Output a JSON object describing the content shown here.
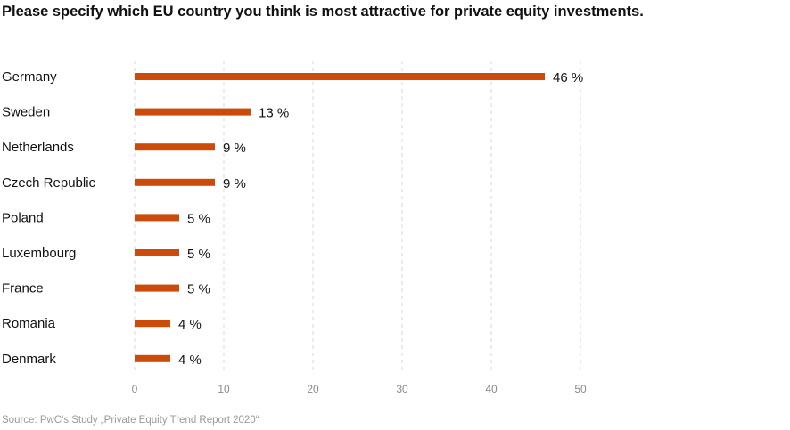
{
  "chart_data": {
    "type": "bar",
    "orientation": "horizontal",
    "title": "Please specify which EU country you think is most attractive for private equity investments.",
    "categories": [
      "Germany",
      "Sweden",
      "Netherlands",
      "Czech Republic",
      "Poland",
      "Luxembourg",
      "France",
      "Romania",
      "Denmark"
    ],
    "values": [
      46,
      13,
      9,
      9,
      5,
      5,
      5,
      4,
      4
    ],
    "value_labels": [
      "46 %",
      "13 %",
      "9 %",
      "9 %",
      "5 %",
      "5 %",
      "5 %",
      "4 %",
      "4 %"
    ],
    "xticks": [
      "0",
      "10",
      "20",
      "30",
      "40",
      "50"
    ],
    "xlim": [
      0,
      50
    ],
    "grid": "vertical dashed",
    "bar_color": "#cc4a0a",
    "source": "Source: PwC's Study „Private Equity Trend Report 2020“"
  }
}
